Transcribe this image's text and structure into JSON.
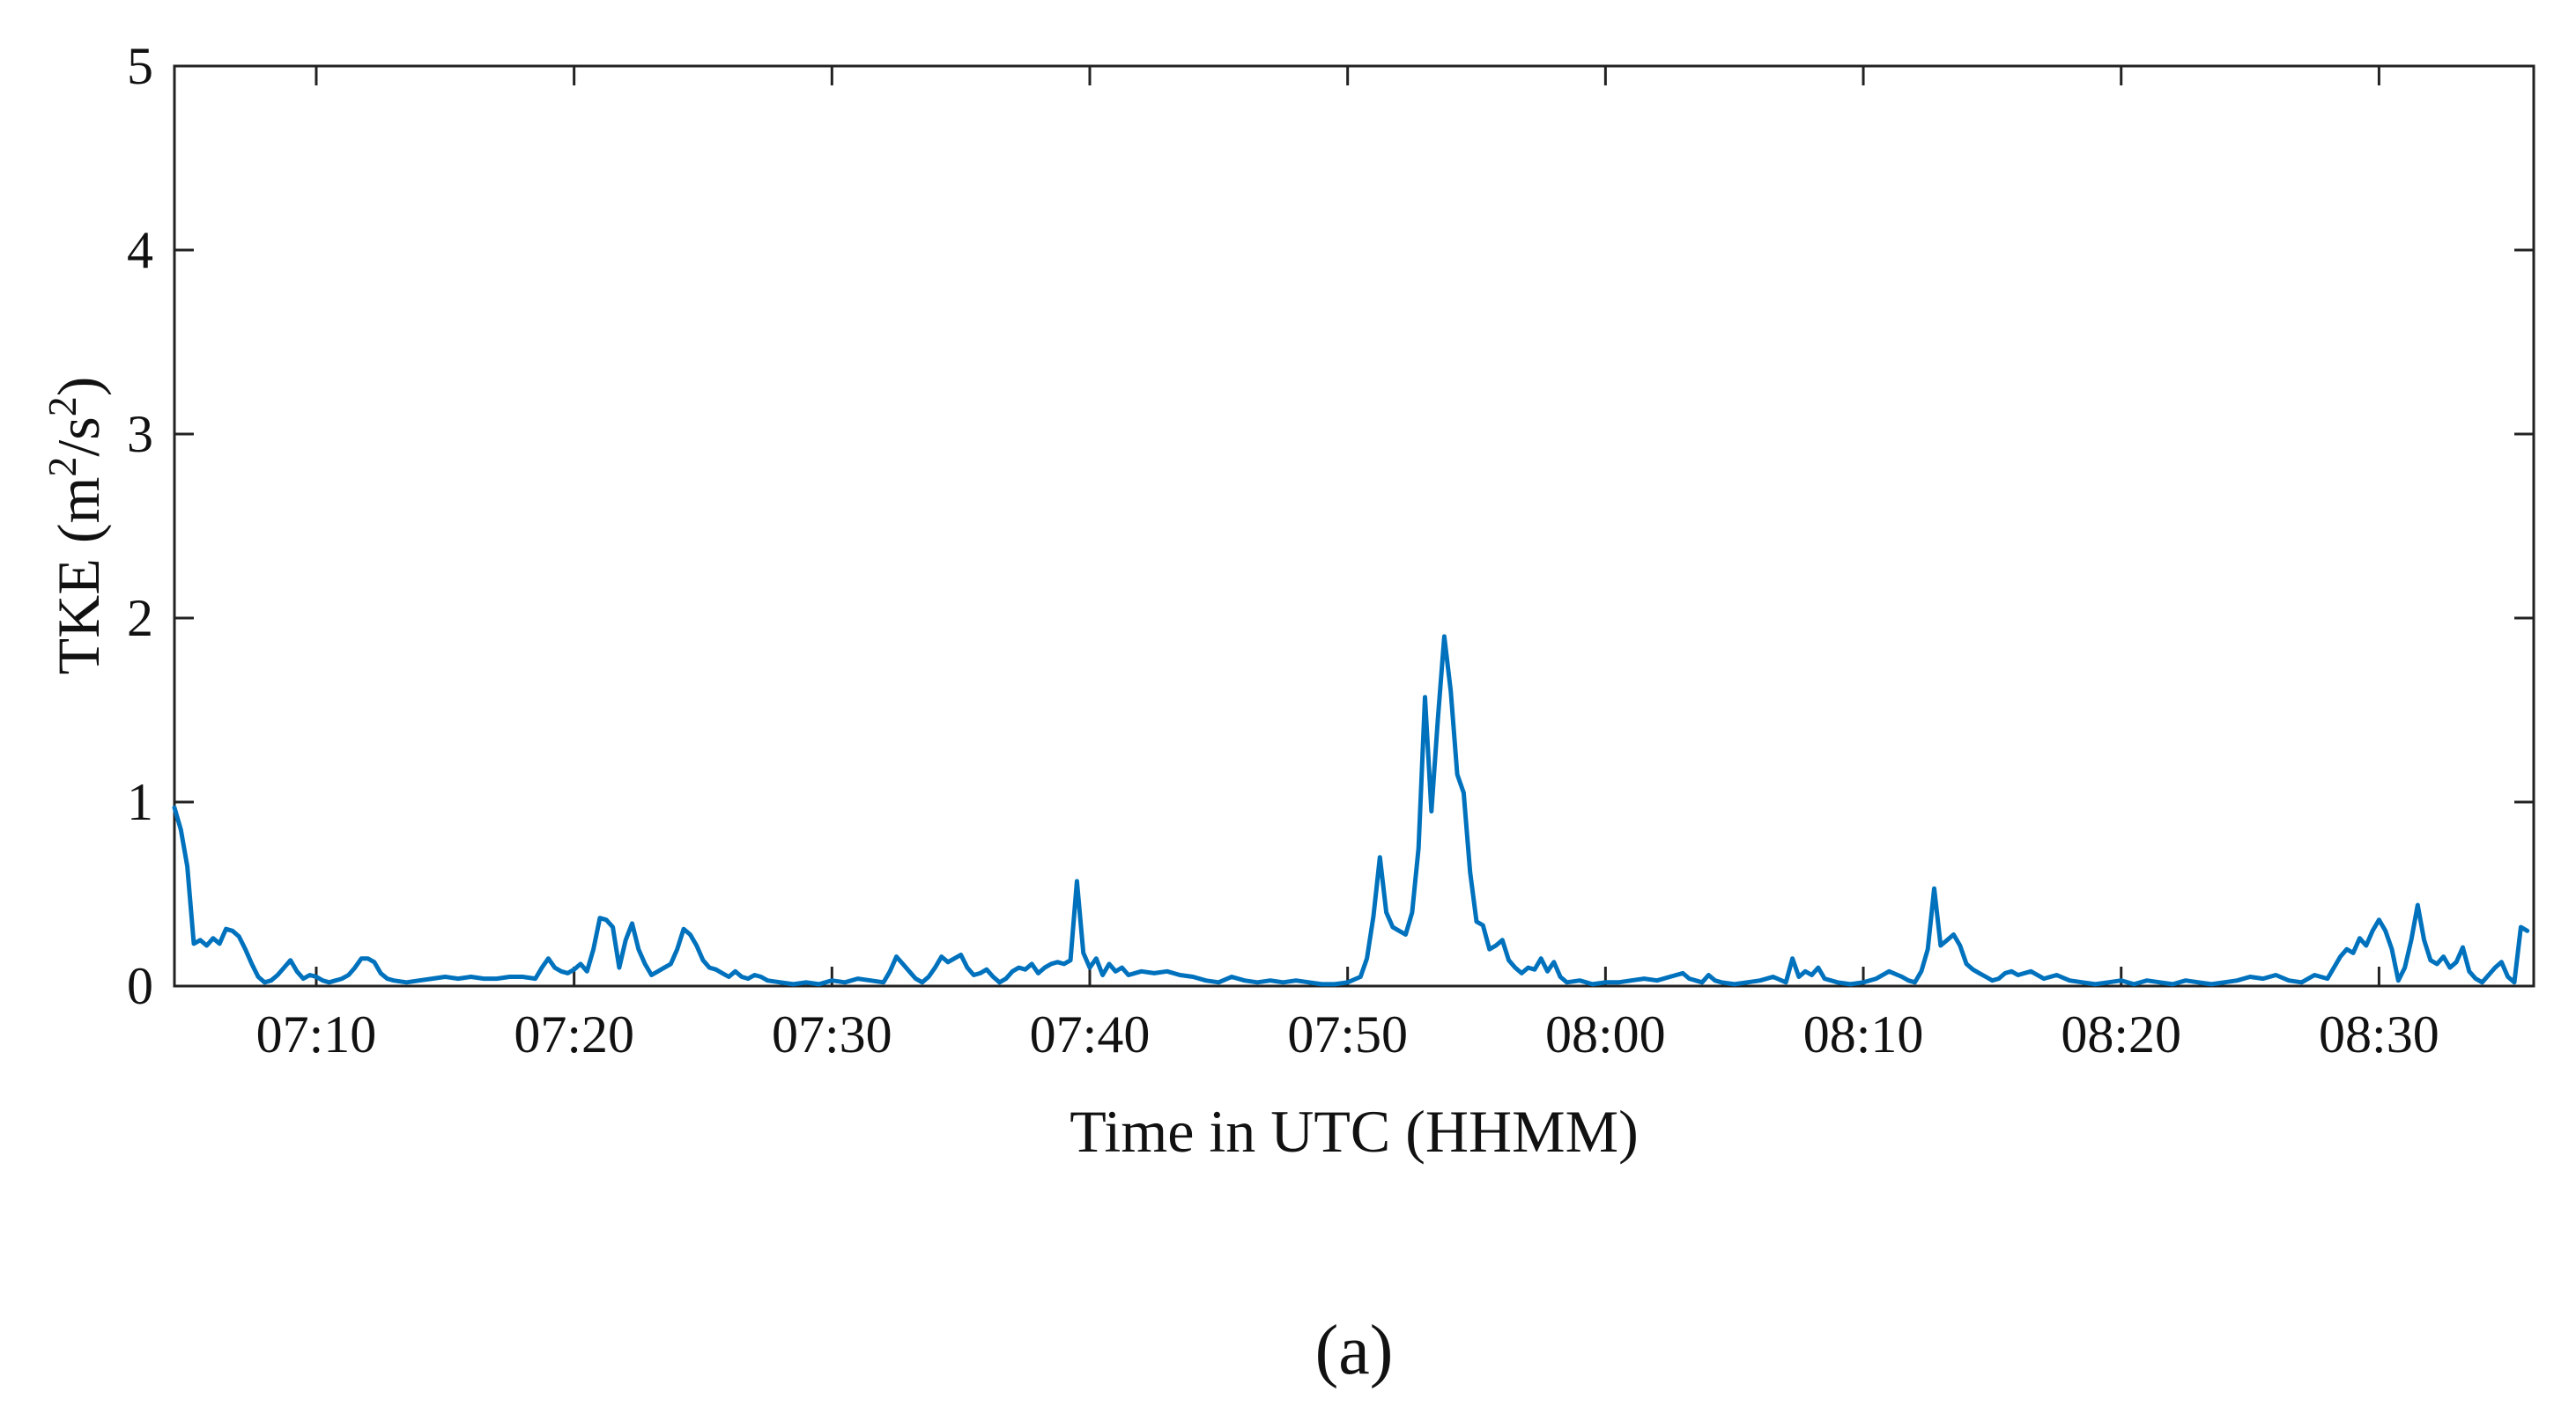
{
  "chart_data": {
    "type": "line",
    "xlabel": "Time in UTC (HHMM)",
    "ylabel_main": "TKE (m",
    "ylabel_sup1": "2",
    "ylabel_mid": "/s",
    "ylabel_sup2": "2",
    "ylabel_end": ")",
    "caption": "(a)",
    "x_range": [
      "07:04:30",
      "08:36:00"
    ],
    "ylim": [
      0,
      5
    ],
    "yticks": [
      0,
      1,
      2,
      3,
      4,
      5
    ],
    "xticks": [
      "07:10",
      "07:20",
      "07:30",
      "07:40",
      "07:50",
      "08:00",
      "08:10",
      "08:20",
      "08:30"
    ],
    "grid": false,
    "series": [
      {
        "color": "#0072BD",
        "points": [
          [
            "07:04:30",
            0.97
          ],
          [
            "07:04:45",
            0.85
          ],
          [
            "07:05:00",
            0.65
          ],
          [
            "07:05:15",
            0.23
          ],
          [
            "07:05:30",
            0.25
          ],
          [
            "07:05:45",
            0.22
          ],
          [
            "07:06:00",
            0.26
          ],
          [
            "07:06:15",
            0.23
          ],
          [
            "07:06:30",
            0.31
          ],
          [
            "07:06:45",
            0.3
          ],
          [
            "07:07:00",
            0.27
          ],
          [
            "07:07:15",
            0.2
          ],
          [
            "07:07:30",
            0.12
          ],
          [
            "07:07:45",
            0.05
          ],
          [
            "07:08:00",
            0.02
          ],
          [
            "07:08:15",
            0.03
          ],
          [
            "07:08:30",
            0.06
          ],
          [
            "07:08:45",
            0.1
          ],
          [
            "07:09:00",
            0.14
          ],
          [
            "07:09:15",
            0.08
          ],
          [
            "07:09:30",
            0.04
          ],
          [
            "07:09:45",
            0.06
          ],
          [
            "07:10:00",
            0.05
          ],
          [
            "07:10:15",
            0.03
          ],
          [
            "07:10:30",
            0.02
          ],
          [
            "07:10:45",
            0.03
          ],
          [
            "07:11:00",
            0.04
          ],
          [
            "07:11:15",
            0.06
          ],
          [
            "07:11:30",
            0.1
          ],
          [
            "07:11:45",
            0.15
          ],
          [
            "07:12:00",
            0.15
          ],
          [
            "07:12:15",
            0.13
          ],
          [
            "07:12:30",
            0.07
          ],
          [
            "07:12:45",
            0.04
          ],
          [
            "07:13:00",
            0.03
          ],
          [
            "07:13:30",
            0.02
          ],
          [
            "07:14:00",
            0.03
          ],
          [
            "07:14:30",
            0.04
          ],
          [
            "07:15:00",
            0.05
          ],
          [
            "07:15:30",
            0.04
          ],
          [
            "07:16:00",
            0.05
          ],
          [
            "07:16:30",
            0.04
          ],
          [
            "07:17:00",
            0.04
          ],
          [
            "07:17:30",
            0.05
          ],
          [
            "07:18:00",
            0.05
          ],
          [
            "07:18:30",
            0.04
          ],
          [
            "07:18:45",
            0.1
          ],
          [
            "07:19:00",
            0.15
          ],
          [
            "07:19:15",
            0.1
          ],
          [
            "07:19:30",
            0.08
          ],
          [
            "07:19:45",
            0.07
          ],
          [
            "07:20:00",
            0.09
          ],
          [
            "07:20:15",
            0.12
          ],
          [
            "07:20:30",
            0.08
          ],
          [
            "07:20:45",
            0.2
          ],
          [
            "07:21:00",
            0.37
          ],
          [
            "07:21:15",
            0.36
          ],
          [
            "07:21:30",
            0.32
          ],
          [
            "07:21:45",
            0.1
          ],
          [
            "07:22:00",
            0.25
          ],
          [
            "07:22:15",
            0.34
          ],
          [
            "07:22:30",
            0.2
          ],
          [
            "07:22:45",
            0.12
          ],
          [
            "07:23:00",
            0.06
          ],
          [
            "07:23:15",
            0.08
          ],
          [
            "07:23:30",
            0.1
          ],
          [
            "07:23:45",
            0.12
          ],
          [
            "07:24:00",
            0.2
          ],
          [
            "07:24:15",
            0.31
          ],
          [
            "07:24:30",
            0.28
          ],
          [
            "07:24:45",
            0.22
          ],
          [
            "07:25:00",
            0.14
          ],
          [
            "07:25:15",
            0.1
          ],
          [
            "07:25:30",
            0.09
          ],
          [
            "07:25:45",
            0.07
          ],
          [
            "07:26:00",
            0.05
          ],
          [
            "07:26:15",
            0.08
          ],
          [
            "07:26:30",
            0.05
          ],
          [
            "07:26:45",
            0.04
          ],
          [
            "07:27:00",
            0.06
          ],
          [
            "07:27:15",
            0.05
          ],
          [
            "07:27:30",
            0.03
          ],
          [
            "07:28:00",
            0.02
          ],
          [
            "07:28:30",
            0.01
          ],
          [
            "07:29:00",
            0.02
          ],
          [
            "07:29:30",
            0.01
          ],
          [
            "07:30:00",
            0.03
          ],
          [
            "07:30:30",
            0.02
          ],
          [
            "07:31:00",
            0.04
          ],
          [
            "07:31:30",
            0.03
          ],
          [
            "07:32:00",
            0.02
          ],
          [
            "07:32:15",
            0.08
          ],
          [
            "07:32:30",
            0.16
          ],
          [
            "07:32:45",
            0.12
          ],
          [
            "07:33:00",
            0.08
          ],
          [
            "07:33:15",
            0.04
          ],
          [
            "07:33:30",
            0.02
          ],
          [
            "07:33:45",
            0.05
          ],
          [
            "07:34:00",
            0.1
          ],
          [
            "07:34:15",
            0.16
          ],
          [
            "07:34:30",
            0.13
          ],
          [
            "07:34:45",
            0.15
          ],
          [
            "07:35:00",
            0.17
          ],
          [
            "07:35:15",
            0.1
          ],
          [
            "07:35:30",
            0.06
          ],
          [
            "07:35:45",
            0.07
          ],
          [
            "07:36:00",
            0.09
          ],
          [
            "07:36:15",
            0.05
          ],
          [
            "07:36:30",
            0.02
          ],
          [
            "07:36:45",
            0.04
          ],
          [
            "07:37:00",
            0.08
          ],
          [
            "07:37:15",
            0.1
          ],
          [
            "07:37:30",
            0.09
          ],
          [
            "07:37:45",
            0.12
          ],
          [
            "07:38:00",
            0.07
          ],
          [
            "07:38:15",
            0.1
          ],
          [
            "07:38:30",
            0.12
          ],
          [
            "07:38:45",
            0.13
          ],
          [
            "07:39:00",
            0.12
          ],
          [
            "07:39:15",
            0.14
          ],
          [
            "07:39:30",
            0.57
          ],
          [
            "07:39:45",
            0.18
          ],
          [
            "07:40:00",
            0.1
          ],
          [
            "07:40:15",
            0.15
          ],
          [
            "07:40:30",
            0.06
          ],
          [
            "07:40:45",
            0.12
          ],
          [
            "07:41:00",
            0.08
          ],
          [
            "07:41:15",
            0.1
          ],
          [
            "07:41:30",
            0.06
          ],
          [
            "07:42:00",
            0.08
          ],
          [
            "07:42:30",
            0.07
          ],
          [
            "07:43:00",
            0.08
          ],
          [
            "07:43:30",
            0.06
          ],
          [
            "07:44:00",
            0.05
          ],
          [
            "07:44:30",
            0.03
          ],
          [
            "07:45:00",
            0.02
          ],
          [
            "07:45:30",
            0.05
          ],
          [
            "07:46:00",
            0.03
          ],
          [
            "07:46:30",
            0.02
          ],
          [
            "07:47:00",
            0.03
          ],
          [
            "07:47:30",
            0.02
          ],
          [
            "07:48:00",
            0.03
          ],
          [
            "07:48:30",
            0.02
          ],
          [
            "07:49:00",
            0.01
          ],
          [
            "07:49:30",
            0.01
          ],
          [
            "07:50:00",
            0.02
          ],
          [
            "07:50:30",
            0.05
          ],
          [
            "07:50:45",
            0.15
          ],
          [
            "07:51:00",
            0.38
          ],
          [
            "07:51:15",
            0.7
          ],
          [
            "07:51:30",
            0.4
          ],
          [
            "07:51:45",
            0.32
          ],
          [
            "07:52:00",
            0.3
          ],
          [
            "07:52:15",
            0.28
          ],
          [
            "07:52:30",
            0.4
          ],
          [
            "07:52:45",
            0.75
          ],
          [
            "07:53:00",
            1.57
          ],
          [
            "07:53:15",
            0.95
          ],
          [
            "07:53:30",
            1.45
          ],
          [
            "07:53:45",
            1.9
          ],
          [
            "07:54:00",
            1.6
          ],
          [
            "07:54:15",
            1.15
          ],
          [
            "07:54:30",
            1.05
          ],
          [
            "07:54:45",
            0.62
          ],
          [
            "07:55:00",
            0.35
          ],
          [
            "07:55:15",
            0.33
          ],
          [
            "07:55:30",
            0.2
          ],
          [
            "07:55:45",
            0.22
          ],
          [
            "07:56:00",
            0.25
          ],
          [
            "07:56:15",
            0.14
          ],
          [
            "07:56:30",
            0.1
          ],
          [
            "07:56:45",
            0.07
          ],
          [
            "07:57:00",
            0.1
          ],
          [
            "07:57:15",
            0.09
          ],
          [
            "07:57:30",
            0.15
          ],
          [
            "07:57:45",
            0.08
          ],
          [
            "07:58:00",
            0.13
          ],
          [
            "07:58:15",
            0.05
          ],
          [
            "07:58:30",
            0.02
          ],
          [
            "07:59:00",
            0.03
          ],
          [
            "07:59:30",
            0.01
          ],
          [
            "08:00:00",
            0.02
          ],
          [
            "08:00:30",
            0.02
          ],
          [
            "08:01:00",
            0.03
          ],
          [
            "08:01:30",
            0.04
          ],
          [
            "08:02:00",
            0.03
          ],
          [
            "08:02:30",
            0.05
          ],
          [
            "08:03:00",
            0.07
          ],
          [
            "08:03:15",
            0.04
          ],
          [
            "08:03:30",
            0.03
          ],
          [
            "08:03:45",
            0.02
          ],
          [
            "08:04:00",
            0.06
          ],
          [
            "08:04:15",
            0.03
          ],
          [
            "08:04:30",
            0.02
          ],
          [
            "08:05:00",
            0.01
          ],
          [
            "08:05:30",
            0.02
          ],
          [
            "08:06:00",
            0.03
          ],
          [
            "08:06:30",
            0.05
          ],
          [
            "08:07:00",
            0.02
          ],
          [
            "08:07:15",
            0.15
          ],
          [
            "08:07:30",
            0.05
          ],
          [
            "08:07:45",
            0.08
          ],
          [
            "08:08:00",
            0.06
          ],
          [
            "08:08:15",
            0.1
          ],
          [
            "08:08:30",
            0.04
          ],
          [
            "08:09:00",
            0.02
          ],
          [
            "08:09:30",
            0.01
          ],
          [
            "08:10:00",
            0.02
          ],
          [
            "08:10:30",
            0.04
          ],
          [
            "08:11:00",
            0.08
          ],
          [
            "08:11:30",
            0.05
          ],
          [
            "08:11:45",
            0.03
          ],
          [
            "08:12:00",
            0.02
          ],
          [
            "08:12:15",
            0.08
          ],
          [
            "08:12:30",
            0.2
          ],
          [
            "08:12:45",
            0.53
          ],
          [
            "08:13:00",
            0.22
          ],
          [
            "08:13:15",
            0.25
          ],
          [
            "08:13:30",
            0.28
          ],
          [
            "08:13:45",
            0.22
          ],
          [
            "08:14:00",
            0.12
          ],
          [
            "08:14:15",
            0.09
          ],
          [
            "08:14:30",
            0.07
          ],
          [
            "08:14:45",
            0.05
          ],
          [
            "08:15:00",
            0.03
          ],
          [
            "08:15:15",
            0.04
          ],
          [
            "08:15:30",
            0.07
          ],
          [
            "08:15:45",
            0.08
          ],
          [
            "08:16:00",
            0.06
          ],
          [
            "08:16:30",
            0.08
          ],
          [
            "08:17:00",
            0.04
          ],
          [
            "08:17:30",
            0.06
          ],
          [
            "08:18:00",
            0.03
          ],
          [
            "08:18:30",
            0.02
          ],
          [
            "08:19:00",
            0.01
          ],
          [
            "08:19:30",
            0.02
          ],
          [
            "08:20:00",
            0.03
          ],
          [
            "08:20:30",
            0.01
          ],
          [
            "08:21:00",
            0.03
          ],
          [
            "08:21:30",
            0.02
          ],
          [
            "08:22:00",
            0.01
          ],
          [
            "08:22:30",
            0.03
          ],
          [
            "08:23:00",
            0.02
          ],
          [
            "08:23:30",
            0.01
          ],
          [
            "08:24:00",
            0.02
          ],
          [
            "08:24:30",
            0.03
          ],
          [
            "08:25:00",
            0.05
          ],
          [
            "08:25:30",
            0.04
          ],
          [
            "08:26:00",
            0.06
          ],
          [
            "08:26:30",
            0.03
          ],
          [
            "08:27:00",
            0.02
          ],
          [
            "08:27:30",
            0.06
          ],
          [
            "08:28:00",
            0.04
          ],
          [
            "08:28:15",
            0.1
          ],
          [
            "08:28:30",
            0.16
          ],
          [
            "08:28:45",
            0.2
          ],
          [
            "08:29:00",
            0.18
          ],
          [
            "08:29:15",
            0.26
          ],
          [
            "08:29:30",
            0.22
          ],
          [
            "08:29:45",
            0.3
          ],
          [
            "08:30:00",
            0.36
          ],
          [
            "08:30:15",
            0.3
          ],
          [
            "08:30:30",
            0.2
          ],
          [
            "08:30:45",
            0.03
          ],
          [
            "08:31:00",
            0.1
          ],
          [
            "08:31:15",
            0.25
          ],
          [
            "08:31:30",
            0.44
          ],
          [
            "08:31:45",
            0.25
          ],
          [
            "08:32:00",
            0.14
          ],
          [
            "08:32:15",
            0.12
          ],
          [
            "08:32:30",
            0.16
          ],
          [
            "08:32:45",
            0.1
          ],
          [
            "08:33:00",
            0.13
          ],
          [
            "08:33:15",
            0.21
          ],
          [
            "08:33:30",
            0.08
          ],
          [
            "08:33:45",
            0.04
          ],
          [
            "08:34:00",
            0.02
          ],
          [
            "08:34:15",
            0.06
          ],
          [
            "08:34:30",
            0.1
          ],
          [
            "08:34:45",
            0.13
          ],
          [
            "08:35:00",
            0.05
          ],
          [
            "08:35:15",
            0.02
          ],
          [
            "08:35:30",
            0.32
          ],
          [
            "08:35:45",
            0.3
          ]
        ]
      }
    ]
  }
}
